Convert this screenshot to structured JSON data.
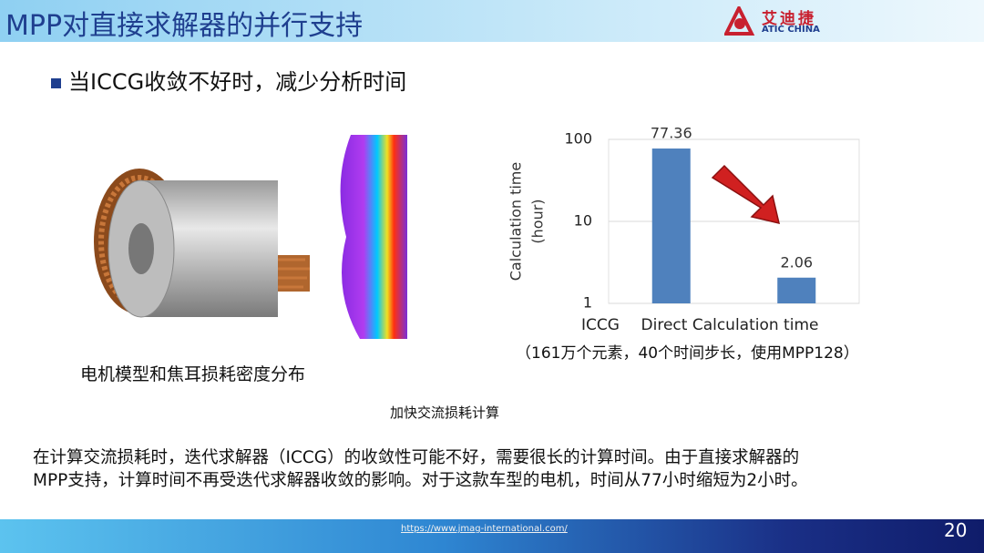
{
  "header": {
    "title": "MPP对直接求解器的并行支持",
    "logo_cn": "艾迪捷",
    "logo_en": "ATIC CHINA"
  },
  "bullet": "当ICCG收敛不好时，减少分析时间",
  "image_caption": "电机模型和焦耳损耗密度分布",
  "chart_data": {
    "type": "bar",
    "ylabel": [
      "Calculation time",
      "(hour)"
    ],
    "categories": [
      "ICCG",
      "Direct Calculation time"
    ],
    "values": [
      77.36,
      2.06
    ],
    "color": "#4f81bd",
    "ylim": [
      1,
      100
    ],
    "yticks": [
      1,
      10,
      100
    ],
    "log_scale": true,
    "grid": true,
    "note": "（161万个元素，40个时间步长，使用MPP128）"
  },
  "chart_caption": "加快交流损耗计算",
  "body": [
    "在计算交流损耗时，迭代求解器（ICCG）的收敛性可能不好，需要很长的计算时间。由于直接求解器的",
    "MPP支持，计算时间不再受迭代求解器收敛的影响。对于这款车型的电机，时间从77小时缩短为2小时。"
  ],
  "footer": {
    "url": "https://www.jmag-international.com/",
    "page": "20"
  }
}
